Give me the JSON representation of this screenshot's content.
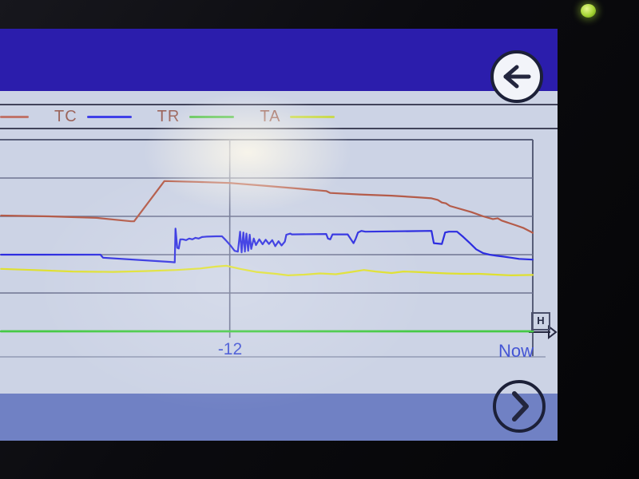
{
  "device": {
    "power_led_color": "#a6d435"
  },
  "colors": {
    "title_bar": "#2b1dac",
    "screen_bg": "#ccd3e5",
    "bottom_bar": "#7081c4",
    "grid": "#6e7492",
    "frame": "#585e78",
    "separator": "#9aa2ba",
    "axis_label": "#4455d4",
    "legend_text": "#9c655c",
    "icon_dark": "#23263e",
    "button_border": "#1c2038"
  },
  "nav": {
    "back_icon": "arrow-left",
    "next_icon": "chevron-right"
  },
  "legend": {
    "items": [
      {
        "label": "",
        "line_color": "#c0746a"
      },
      {
        "label": "TC",
        "line_color": "#4040e8"
      },
      {
        "label": "TR",
        "line_color": "#55c24e"
      },
      {
        "label": "TA",
        "line_color": "#c9d94e"
      }
    ]
  },
  "chart_data": {
    "type": "line",
    "title": "",
    "x_axis": {
      "unit_label": "H",
      "min_hours": -21.1,
      "max_hours": 0,
      "ticks": [
        {
          "t": -12,
          "label": "-12"
        },
        {
          "t": 0,
          "label": "Now"
        }
      ]
    },
    "y_axis": {
      "labels_visible": false,
      "unit": "gridline-intervals above baseline",
      "gridline_units": [
        1,
        2,
        3,
        4
      ],
      "top_border_unit": 5
    },
    "series": [
      {
        "name": "",
        "legend_label_cut_off": true,
        "color": "#b45b49",
        "points": [
          [
            -21.06,
            3.02
          ],
          [
            -19.17,
            3.0
          ],
          [
            -17.27,
            2.96
          ],
          [
            -15.91,
            2.87
          ],
          [
            -15.79,
            2.87
          ],
          [
            -14.59,
            3.92
          ],
          [
            -13.32,
            3.9
          ],
          [
            -12.0,
            3.87
          ],
          [
            -10.64,
            3.8
          ],
          [
            -9.22,
            3.72
          ],
          [
            -8.18,
            3.66
          ],
          [
            -8.02,
            3.61
          ],
          [
            -6.85,
            3.57
          ],
          [
            -5.59,
            3.54
          ],
          [
            -4.64,
            3.5
          ],
          [
            -4.01,
            3.47
          ],
          [
            -3.76,
            3.43
          ],
          [
            -3.6,
            3.36
          ],
          [
            -3.44,
            3.34
          ],
          [
            -3.28,
            3.27
          ],
          [
            -2.43,
            3.11
          ],
          [
            -1.96,
            3.0
          ],
          [
            -1.58,
            2.93
          ],
          [
            -1.39,
            2.95
          ],
          [
            -1.23,
            2.89
          ],
          [
            -0.69,
            2.77
          ],
          [
            -0.38,
            2.7
          ],
          [
            0.0,
            2.57
          ]
        ]
      },
      {
        "name": "TC",
        "color": "#2d2de0",
        "points": [
          [
            -21.06,
            2.0
          ],
          [
            -17.12,
            2.0
          ],
          [
            -17.02,
            1.92
          ],
          [
            -14.34,
            1.81
          ],
          [
            -14.18,
            1.8
          ],
          [
            -14.15,
            2.68
          ],
          [
            -14.08,
            2.18
          ],
          [
            -14.02,
            2.16
          ],
          [
            -13.96,
            2.4
          ],
          [
            -13.86,
            2.4
          ],
          [
            -13.73,
            2.38
          ],
          [
            -13.61,
            2.42
          ],
          [
            -13.48,
            2.4
          ],
          [
            -13.36,
            2.44
          ],
          [
            -13.23,
            2.42
          ],
          [
            -13.1,
            2.46
          ],
          [
            -12.91,
            2.47
          ],
          [
            -12.54,
            2.48
          ],
          [
            -12.31,
            2.48
          ],
          [
            -12.16,
            2.38
          ],
          [
            -11.97,
            2.24
          ],
          [
            -11.81,
            2.1
          ],
          [
            -11.68,
            2.08
          ],
          [
            -11.59,
            2.6
          ],
          [
            -11.53,
            2.06
          ],
          [
            -11.46,
            2.58
          ],
          [
            -11.4,
            2.08
          ],
          [
            -11.34,
            2.55
          ],
          [
            -11.27,
            2.1
          ],
          [
            -11.21,
            2.52
          ],
          [
            -11.15,
            2.15
          ],
          [
            -11.05,
            2.42
          ],
          [
            -10.96,
            2.25
          ],
          [
            -10.83,
            2.4
          ],
          [
            -10.7,
            2.27
          ],
          [
            -10.58,
            2.39
          ],
          [
            -10.45,
            2.28
          ],
          [
            -10.32,
            2.38
          ],
          [
            -10.2,
            2.22
          ],
          [
            -10.07,
            2.35
          ],
          [
            -9.95,
            2.24
          ],
          [
            -9.82,
            2.34
          ],
          [
            -9.76,
            2.52
          ],
          [
            -9.6,
            2.55
          ],
          [
            -9.54,
            2.53
          ],
          [
            -8.18,
            2.54
          ],
          [
            -8.11,
            2.42
          ],
          [
            -8.02,
            2.4
          ],
          [
            -7.93,
            2.53
          ],
          [
            -7.33,
            2.53
          ],
          [
            -7.2,
            2.4
          ],
          [
            -7.1,
            2.3
          ],
          [
            -7.01,
            2.42
          ],
          [
            -6.92,
            2.58
          ],
          [
            -6.79,
            2.62
          ],
          [
            -6.63,
            2.6
          ],
          [
            -4.01,
            2.62
          ],
          [
            -3.92,
            2.3
          ],
          [
            -3.6,
            2.28
          ],
          [
            -3.47,
            2.58
          ],
          [
            -3.32,
            2.6
          ],
          [
            -3.0,
            2.6
          ],
          [
            -2.75,
            2.46
          ],
          [
            -2.49,
            2.3
          ],
          [
            -2.24,
            2.14
          ],
          [
            -1.96,
            2.04
          ],
          [
            -1.71,
            2.0
          ],
          [
            -1.42,
            1.97
          ],
          [
            -1.17,
            1.95
          ],
          [
            -0.85,
            1.92
          ],
          [
            -0.54,
            1.89
          ],
          [
            0.0,
            1.87
          ]
        ]
      },
      {
        "name": "TA",
        "color": "#dfe030",
        "points": [
          [
            -21.06,
            1.63
          ],
          [
            -19.8,
            1.6
          ],
          [
            -18.22,
            1.56
          ],
          [
            -16.64,
            1.55
          ],
          [
            -15.38,
            1.57
          ],
          [
            -14.11,
            1.6
          ],
          [
            -13.17,
            1.64
          ],
          [
            -12.54,
            1.69
          ],
          [
            -12.13,
            1.71
          ],
          [
            -11.59,
            1.63
          ],
          [
            -10.96,
            1.55
          ],
          [
            -10.17,
            1.5
          ],
          [
            -9.69,
            1.46
          ],
          [
            -9.06,
            1.48
          ],
          [
            -8.43,
            1.51
          ],
          [
            -7.8,
            1.49
          ],
          [
            -7.17,
            1.55
          ],
          [
            -6.69,
            1.6
          ],
          [
            -6.22,
            1.56
          ],
          [
            -5.59,
            1.52
          ],
          [
            -5.12,
            1.56
          ],
          [
            -4.64,
            1.55
          ],
          [
            -4.01,
            1.53
          ],
          [
            -3.38,
            1.51
          ],
          [
            -2.75,
            1.5
          ],
          [
            -2.12,
            1.5
          ],
          [
            -1.48,
            1.48
          ],
          [
            -0.85,
            1.46
          ],
          [
            0.0,
            1.47
          ]
        ]
      },
      {
        "name": "TR",
        "color": "#46c946",
        "points": [
          [
            -21.06,
            0
          ],
          [
            0.0,
            0
          ]
        ]
      }
    ],
    "legend_position": "top",
    "grid": true
  }
}
